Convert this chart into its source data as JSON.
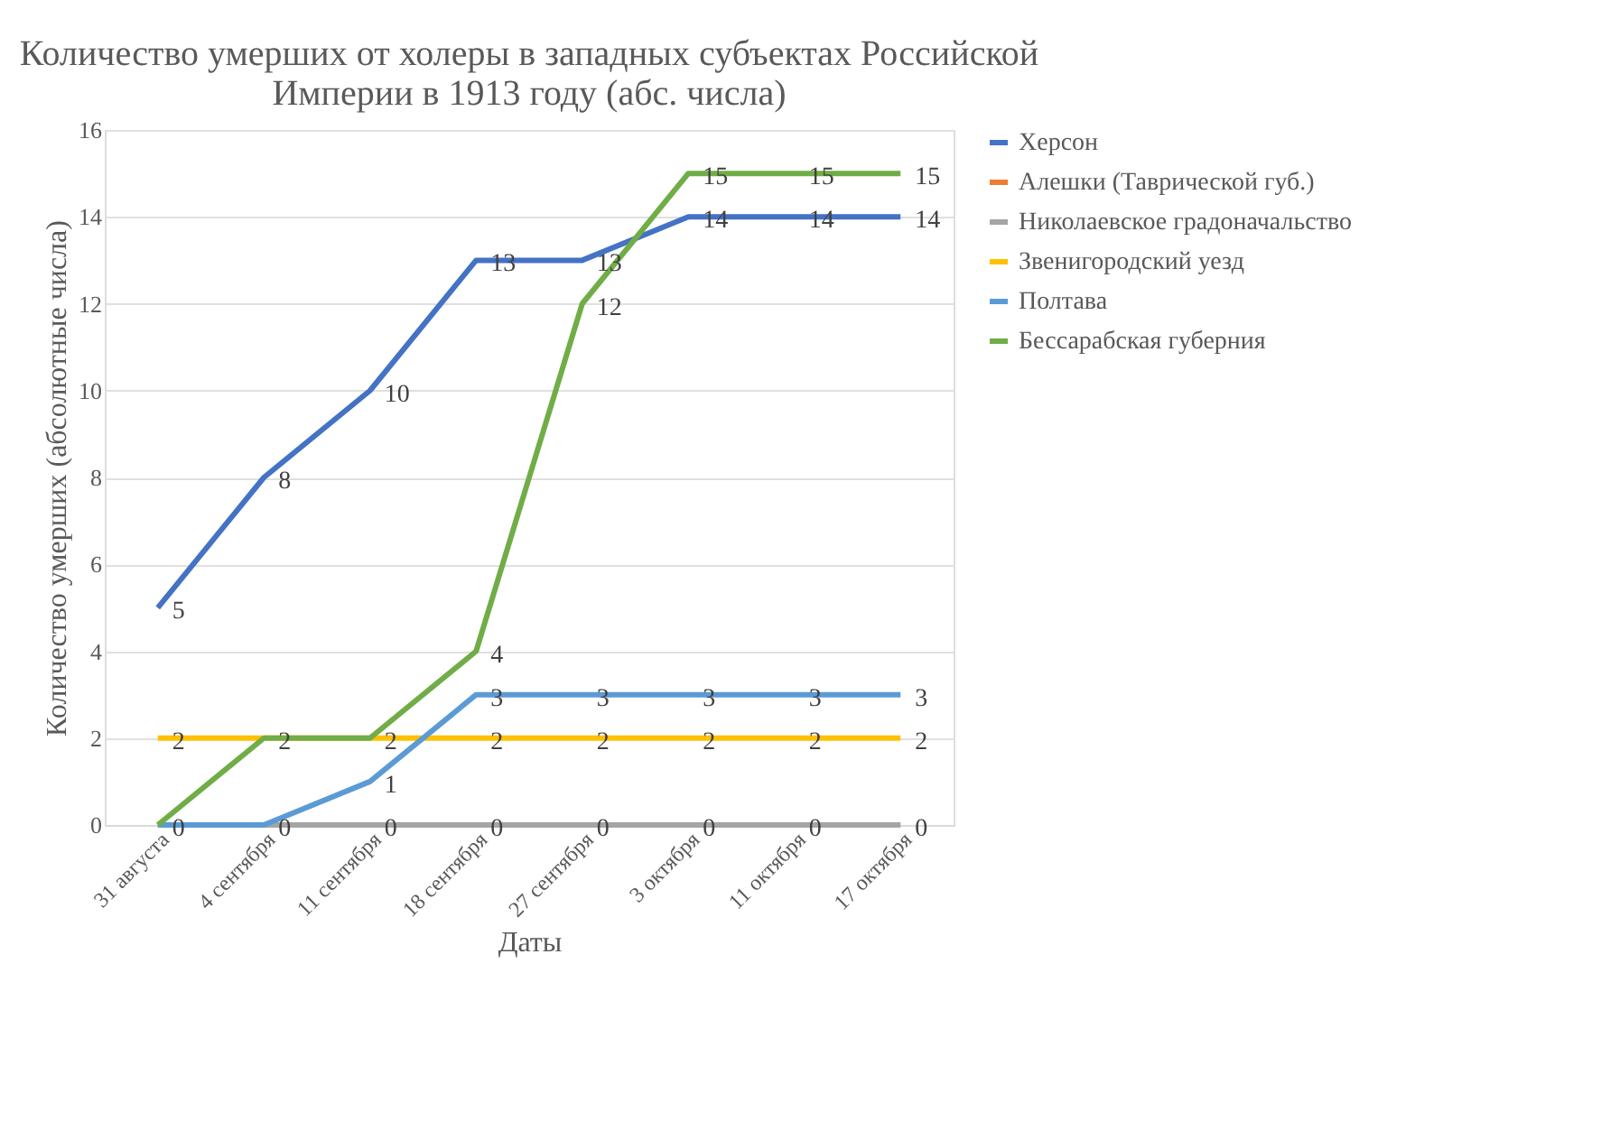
{
  "chart_data": {
    "type": "line",
    "title": "Количество умерших от холеры в западных субъектах Российской Империи в 1913 году (абс. числа)",
    "xlabel": "Даты",
    "ylabel": "Количество умерших (абсолютные числа)",
    "categories": [
      "31 августа",
      "4 сентября",
      "11 сентября",
      "18 сентября",
      "27 сентября",
      "3 октября",
      "11 октября",
      "17 октября"
    ],
    "series": [
      {
        "name": "Херсон",
        "color": "#4472c4",
        "values": [
          5,
          8,
          10,
          13,
          13,
          14,
          14,
          14
        ],
        "value_labels": [
          "5",
          "8",
          "10",
          "13",
          "13",
          "14",
          "14",
          "14"
        ]
      },
      {
        "name": "Алешки (Таврической губ.)",
        "color": "#ed7d31",
        "values": [
          null,
          null,
          null,
          null,
          null,
          null,
          null,
          null
        ],
        "value_labels": [
          null,
          null,
          null,
          null,
          null,
          null,
          null,
          null
        ]
      },
      {
        "name": "Николаевское градоначальство",
        "color": "#a5a5a5",
        "values": [
          0,
          0,
          0,
          0,
          0,
          0,
          0,
          0
        ],
        "value_labels": [
          "0",
          "0",
          "0",
          "0",
          "0",
          "0",
          "0",
          "0"
        ]
      },
      {
        "name": "Звенигородский уезд",
        "color": "#ffc000",
        "values": [
          2,
          2,
          2,
          2,
          2,
          2,
          2,
          2
        ],
        "value_labels": [
          "2",
          "2",
          "2",
          "2",
          "2",
          "2",
          "2",
          "2"
        ]
      },
      {
        "name": "Полтава",
        "color": "#5b9bd5",
        "values": [
          0,
          0,
          1,
          3,
          3,
          3,
          3,
          3
        ],
        "value_labels": [
          null,
          null,
          "1",
          "3",
          "3",
          "3",
          "3",
          "3"
        ]
      },
      {
        "name": "Бессарабская губерния",
        "color": "#70ad47",
        "values": [
          0,
          2,
          2,
          4,
          12,
          15,
          15,
          15
        ],
        "value_labels": [
          null,
          null,
          null,
          "4",
          "12",
          "15",
          "15",
          "15"
        ]
      }
    ],
    "ylim": [
      0,
      16
    ],
    "yticks": [
      0,
      2,
      4,
      6,
      8,
      10,
      12,
      14,
      16
    ],
    "grid": "y",
    "legend": "right",
    "marker": "none",
    "line_style": "solid"
  }
}
